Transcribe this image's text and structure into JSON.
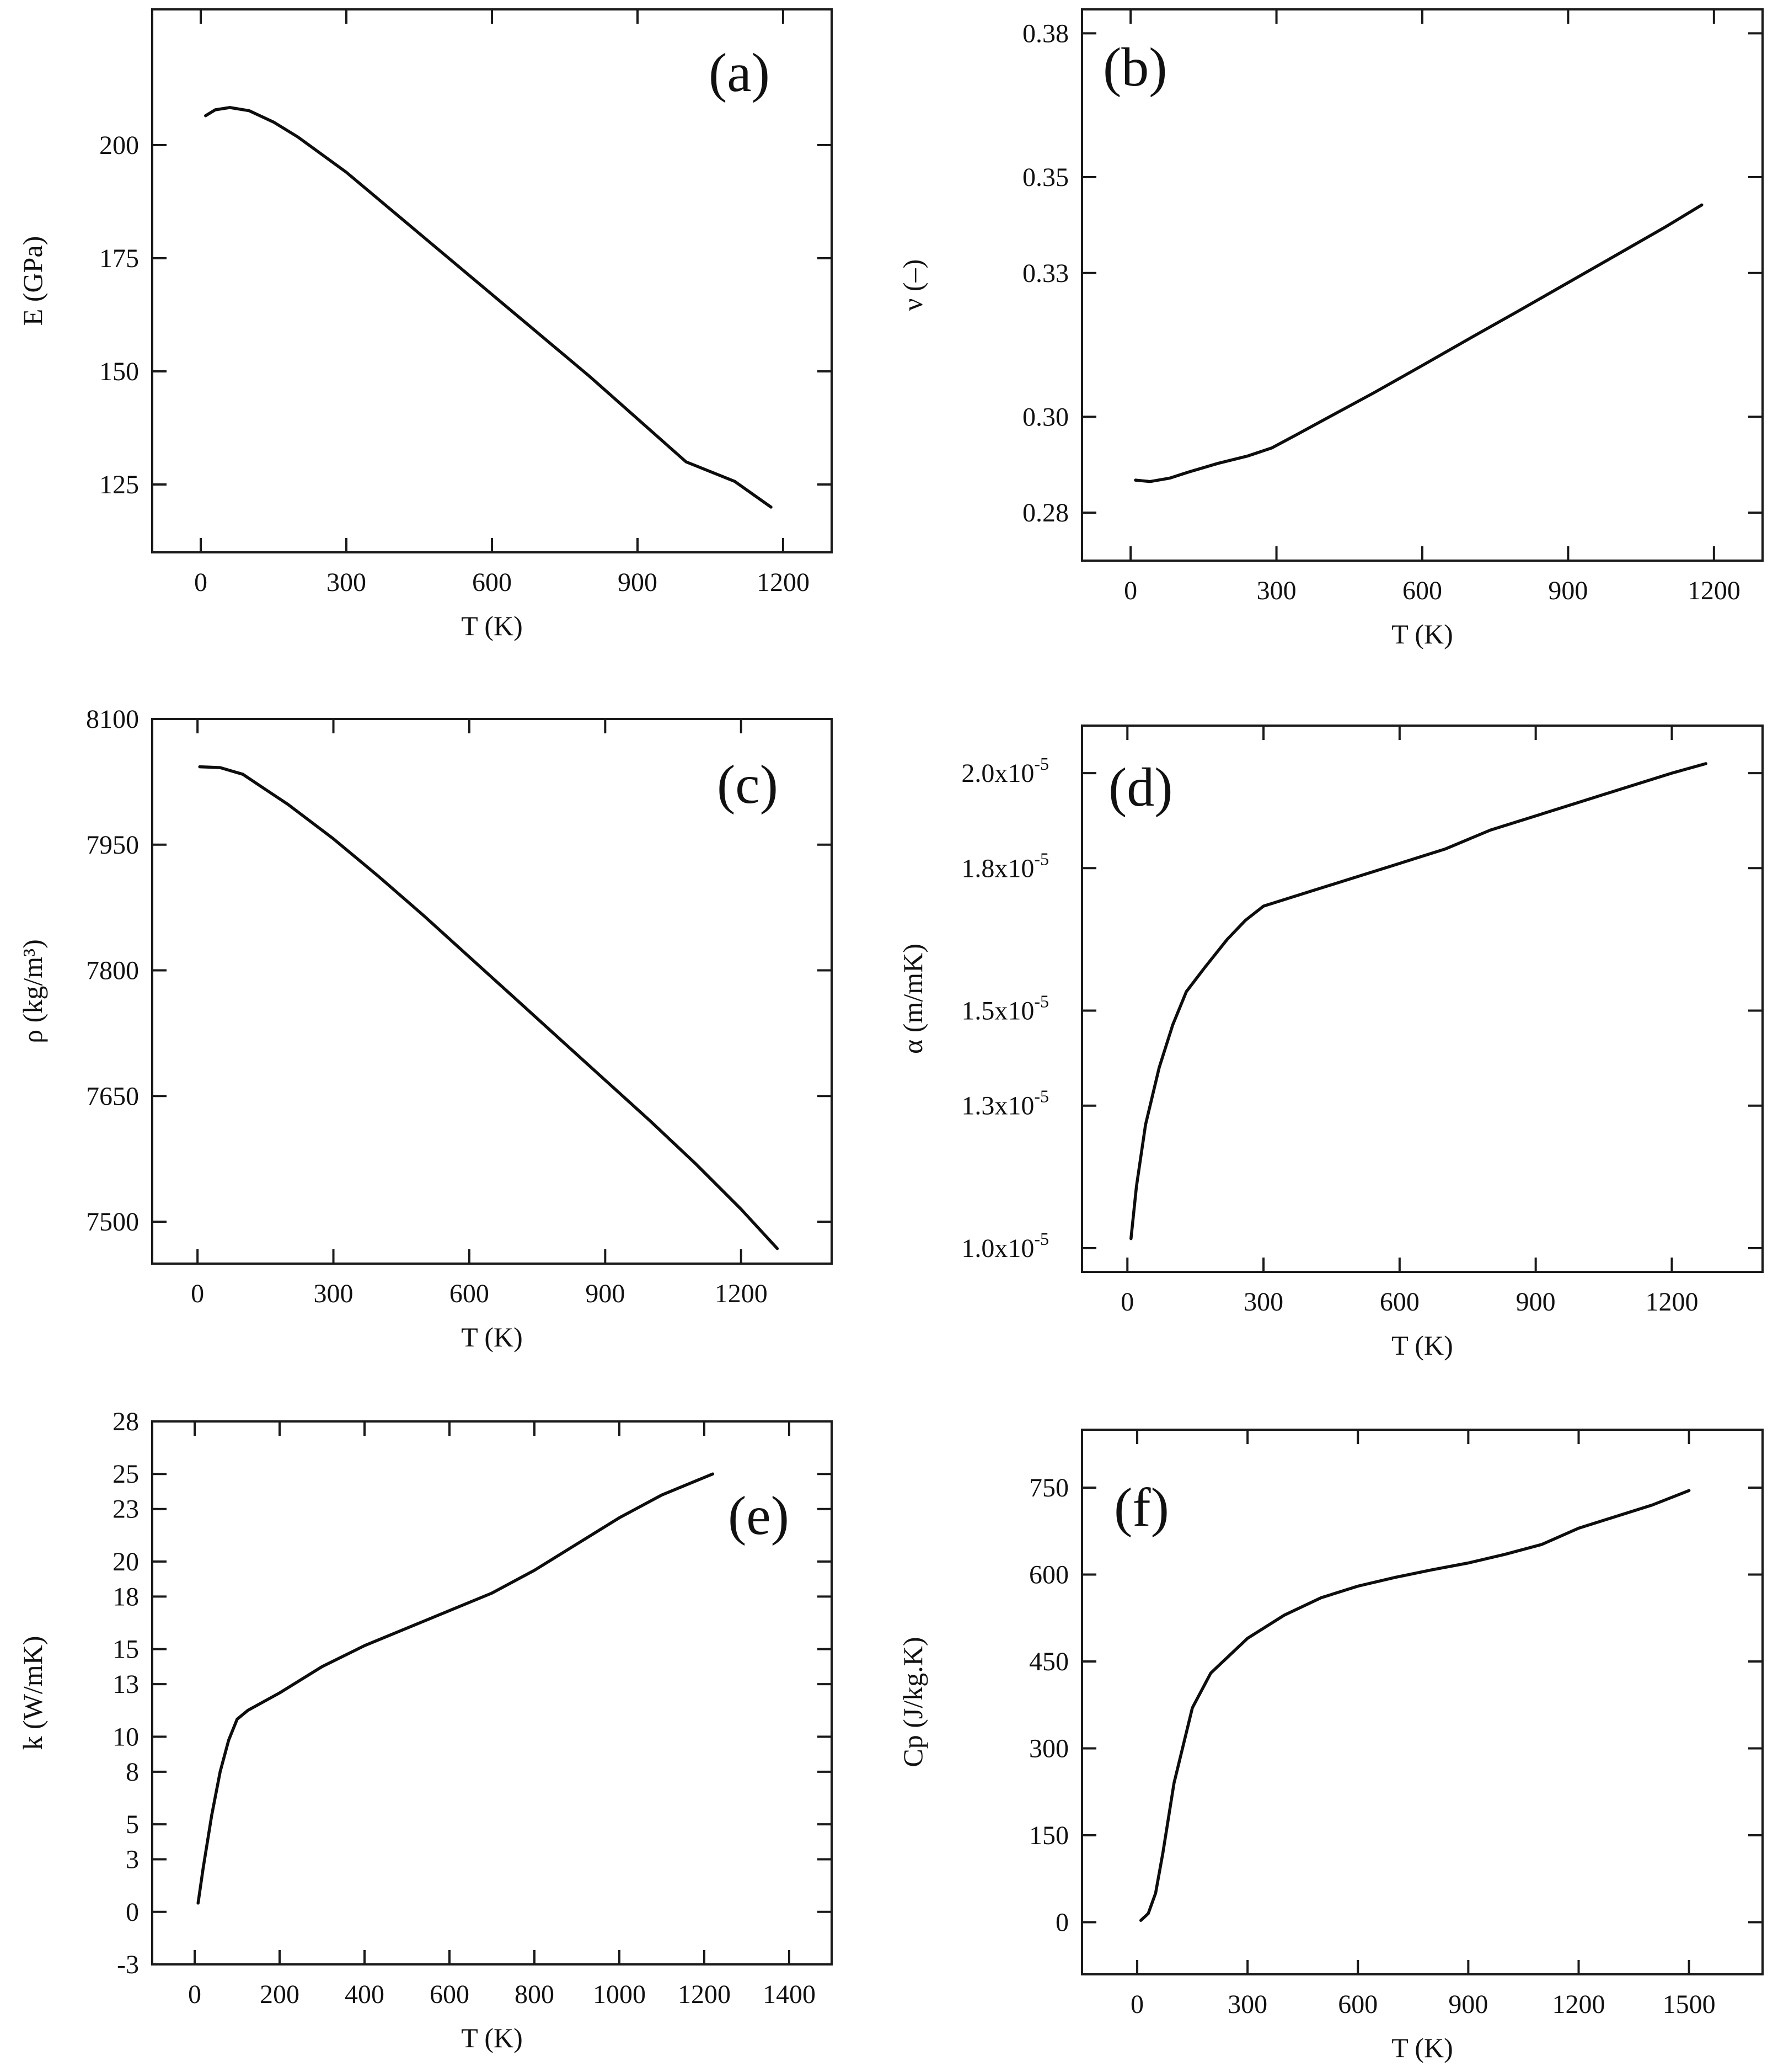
{
  "chart_data": [
    {
      "type": "line",
      "panel_label": "(a)",
      "xlabel": "T (K)",
      "ylabel": "E (GPa)",
      "xlim": [
        -100,
        1300
      ],
      "ylim": [
        110,
        230
      ],
      "x_ticks": [
        0,
        300,
        600,
        900,
        1200
      ],
      "y_ticks": [
        125,
        150,
        175,
        200
      ],
      "x": [
        10,
        30,
        60,
        100,
        150,
        200,
        300,
        400,
        500,
        600,
        700,
        800,
        900,
        1000,
        1100,
        1175
      ],
      "y": [
        206.5,
        207.8,
        208.3,
        207.6,
        205.1,
        201.8,
        194.0,
        185.0,
        176.0,
        167.0,
        158.0,
        149.0,
        139.5,
        130.0,
        125.7,
        120.0
      ]
    },
    {
      "type": "line",
      "panel_label": "(b)",
      "xlabel": "T (K)",
      "ylabel": "ν (–)",
      "xlim": [
        -100,
        1300
      ],
      "ylim": [
        0.27,
        0.385
      ],
      "x_ticks": [
        0,
        300,
        600,
        900,
        1200
      ],
      "y_ticks": [
        0.28,
        0.3,
        0.33,
        0.35,
        0.38
      ],
      "y_tick_labels": [
        "0.28",
        "0.30",
        "0.33",
        "0.35",
        "0.38"
      ],
      "x": [
        10,
        40,
        80,
        120,
        180,
        240,
        290,
        340,
        400,
        500,
        600,
        700,
        800,
        900,
        1000,
        1100,
        1175
      ],
      "y": [
        0.2868,
        0.2865,
        0.2872,
        0.2885,
        0.2903,
        0.2918,
        0.2935,
        0.2962,
        0.2995,
        0.305,
        0.3107,
        0.3165,
        0.3222,
        0.328,
        0.3338,
        0.3396,
        0.3442
      ]
    },
    {
      "type": "line",
      "panel_label": "(c)",
      "xlabel": "T (K)",
      "ylabel": "ρ (kg/m³)",
      "xlim": [
        -100,
        1400
      ],
      "ylim": [
        7450,
        8100
      ],
      "x_ticks": [
        0,
        300,
        600,
        900,
        1200
      ],
      "y_ticks": [
        7500,
        7650,
        7800,
        7950,
        8100
      ],
      "x": [
        5,
        50,
        100,
        150,
        200,
        300,
        400,
        500,
        600,
        700,
        800,
        900,
        1000,
        1100,
        1200,
        1280
      ],
      "y": [
        8043,
        8042,
        8034,
        8016,
        7998,
        7957,
        7912,
        7865,
        7816,
        7767,
        7718,
        7669,
        7620,
        7569,
        7515,
        7468
      ]
    },
    {
      "type": "line",
      "panel_label": "(d)",
      "xlabel": "T (K)",
      "ylabel": "α (m/mK)",
      "xlim": [
        -100,
        1400
      ],
      "ylim": [
        9.5e-06,
        2.1e-05
      ],
      "x_ticks": [
        0,
        300,
        600,
        900,
        1200
      ],
      "y_ticks": [
        1e-05,
        1.3e-05,
        1.5e-05,
        1.8e-05,
        2e-05
      ],
      "y_tick_labels": [
        "1.0x10",
        "1.3x10",
        "1.5x10",
        "1.8x10",
        "2.0x10"
      ],
      "y_tick_exponent": "-5",
      "x": [
        8,
        20,
        40,
        70,
        100,
        130,
        170,
        220,
        260,
        300,
        400,
        500,
        600,
        700,
        800,
        900,
        1000,
        1100,
        1200,
        1275
      ],
      "y": [
        1.02e-05,
        1.13e-05,
        1.26e-05,
        1.38e-05,
        1.47e-05,
        1.54e-05,
        1.59e-05,
        1.65e-05,
        1.69e-05,
        1.72e-05,
        1.75e-05,
        1.78e-05,
        1.81e-05,
        1.84e-05,
        1.88e-05,
        1.91e-05,
        1.94e-05,
        1.97e-05,
        2e-05,
        2.02e-05
      ]
    },
    {
      "type": "line",
      "panel_label": "(e)",
      "xlabel": "T (K)",
      "ylabel": "k (W/mK)",
      "xlim": [
        -100,
        1500
      ],
      "ylim": [
        -3,
        28
      ],
      "x_ticks": [
        0,
        200,
        400,
        600,
        800,
        1000,
        1200,
        1400
      ],
      "y_ticks": [
        -3,
        0,
        3,
        5,
        8,
        10,
        13,
        15,
        18,
        20,
        23,
        25,
        28
      ],
      "x": [
        8,
        20,
        40,
        60,
        80,
        100,
        125,
        200,
        300,
        400,
        500,
        600,
        700,
        800,
        900,
        1000,
        1100,
        1220
      ],
      "y": [
        0.5,
        2.5,
        5.5,
        8.0,
        9.8,
        11.0,
        11.5,
        12.5,
        14.0,
        15.2,
        16.2,
        17.2,
        18.2,
        19.5,
        21.0,
        22.5,
        23.8,
        25.0
      ]
    },
    {
      "type": "line",
      "panel_label": "(f)",
      "xlabel": "T (K)",
      "ylabel": "Cp (J/kg.K)",
      "xlim": [
        -150,
        1700
      ],
      "ylim": [
        -90,
        850
      ],
      "x_ticks": [
        0,
        300,
        600,
        900,
        1200,
        1500
      ],
      "y_ticks": [
        0,
        150,
        300,
        450,
        600,
        750
      ],
      "x": [
        10,
        30,
        50,
        70,
        100,
        150,
        200,
        300,
        400,
        500,
        600,
        700,
        800,
        900,
        1000,
        1100,
        1200,
        1300,
        1400,
        1500
      ],
      "y": [
        3,
        15,
        50,
        120,
        240,
        370,
        430,
        490,
        530,
        560,
        580,
        595,
        608,
        620,
        635,
        652,
        680,
        700,
        720,
        745
      ]
    }
  ]
}
